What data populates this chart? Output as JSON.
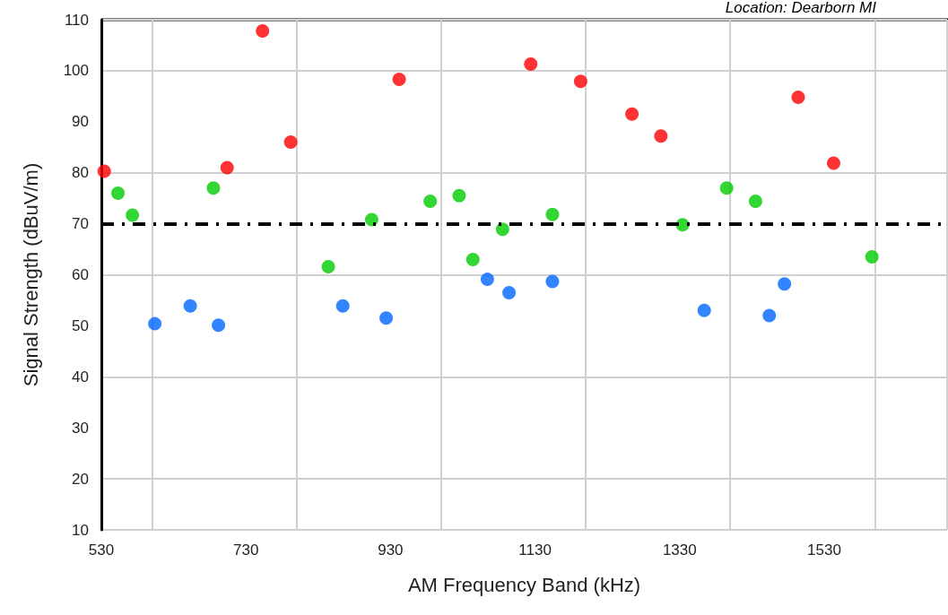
{
  "chart_data": {
    "type": "scatter",
    "xlabel": "AM Frequency Band (kHz)",
    "ylabel": "Signal Strength (dBuV/m)",
    "annotations": [
      "Location: Dearborn MI"
    ],
    "xlim": [
      530,
      1700
    ],
    "xticks": [
      530,
      730,
      930,
      1130,
      1330,
      1530
    ],
    "ylim": [
      10,
      110
    ],
    "yticks": [
      10,
      20,
      30,
      40,
      50,
      60,
      70,
      80,
      90,
      100,
      110
    ],
    "grid": true,
    "marker": "circle",
    "ref_lines": [
      {
        "axis": "y",
        "value": 70,
        "color": "#000000",
        "line_style": "dashdot"
      }
    ],
    "series": [
      {
        "color": "#ff0000",
        "x": [
          534,
          704,
          753,
          792,
          942,
          1124,
          1193,
          1264,
          1304,
          1494,
          1543
        ],
        "values": [
          80.3,
          81,
          107.8,
          86,
          98.3,
          101.3,
          97.9,
          91.5,
          87.2,
          94.8,
          81.9
        ]
      },
      {
        "color": "#00cc00",
        "x": [
          553,
          573,
          685,
          844,
          904,
          985,
          1025,
          1044,
          1085,
          1154,
          1334,
          1395,
          1435,
          1596
        ],
        "values": [
          76,
          71.7,
          77,
          61.6,
          70.8,
          74.4,
          75.5,
          63,
          68.9,
          71.8,
          69.8,
          77,
          74.4,
          63.5
        ]
      },
      {
        "color": "#0066ff",
        "x": [
          604,
          653,
          692,
          864,
          924,
          1064,
          1094,
          1154,
          1364,
          1454,
          1475
        ],
        "values": [
          50.4,
          53.9,
          50.1,
          53.9,
          51.5,
          59.1,
          56.5,
          58.7,
          53,
          52,
          58.2
        ]
      }
    ]
  }
}
